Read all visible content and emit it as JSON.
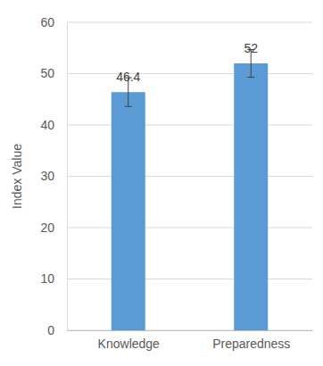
{
  "chart_data": {
    "type": "bar",
    "y_label": "Index Value",
    "categories": [
      "Knowledge",
      "Preparedness"
    ],
    "values": [
      46.4,
      52
    ],
    "errors": [
      2.8,
      2.7
    ],
    "color": "#5b9bd5",
    "ylim": [
      0,
      60
    ],
    "yticks": [
      0,
      10,
      20,
      30,
      40,
      50,
      60
    ],
    "grid": true,
    "data_labels": true
  }
}
